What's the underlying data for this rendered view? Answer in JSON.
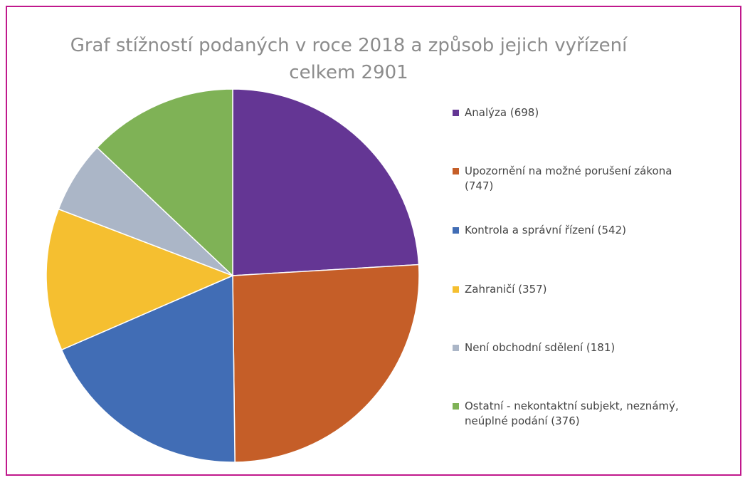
{
  "chart_data": {
    "type": "pie",
    "title": "Graf stížností podaných v roce 2018 a způsob jejich vyřízení",
    "subtitle": "celkem 2901",
    "categories": [
      "Analýza (698)",
      "Upozornění na možné porušení zákona (747)",
      "Kontrola a správní řízení (542)",
      "Zahraničí (357)",
      "Není obchodní sdělení (181)",
      "Ostatní - nekontaktní subjekt, neznámý, neúplné podání (376)"
    ],
    "values": [
      698,
      747,
      542,
      357,
      181,
      376
    ],
    "colors": [
      "#643694",
      "#c55e28",
      "#416db5",
      "#f5bf30",
      "#abb6c7",
      "#7fb256"
    ],
    "legend": "right"
  }
}
